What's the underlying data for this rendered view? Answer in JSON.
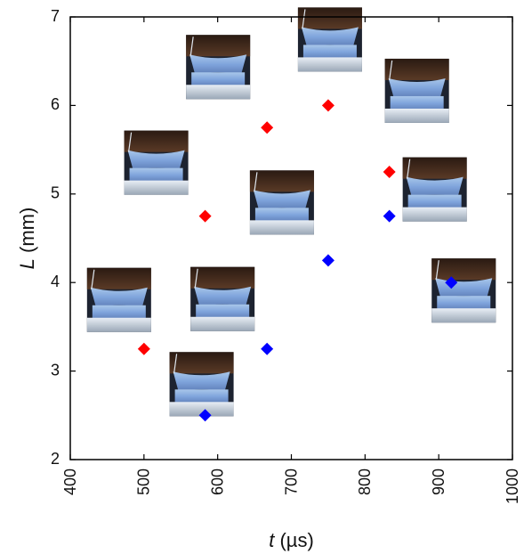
{
  "chart_data": {
    "type": "scatter",
    "title": "",
    "xlabel": {
      "symbol": "t",
      "unit": " (µs)"
    },
    "ylabel": {
      "symbol": "L",
      "unit": " (mm)"
    },
    "xlim": [
      400,
      1000
    ],
    "ylim": [
      2,
      7
    ],
    "xticks": [
      400,
      500,
      600,
      700,
      800,
      900,
      1000
    ],
    "yticks": [
      2,
      3,
      4,
      5,
      6,
      7
    ],
    "grid": false,
    "series": [
      {
        "color": "#ff0000",
        "marker": "diamond",
        "points": [
          {
            "x": 500,
            "y": 3.25
          },
          {
            "x": 583,
            "y": 4.75
          },
          {
            "x": 667,
            "y": 5.75
          },
          {
            "x": 750,
            "y": 6.0
          },
          {
            "x": 833,
            "y": 5.25
          }
        ]
      },
      {
        "color": "#0000ff",
        "marker": "diamond",
        "points": [
          {
            "x": 583,
            "y": 2.5
          },
          {
            "x": 667,
            "y": 3.25
          },
          {
            "x": 750,
            "y": 4.25
          },
          {
            "x": 833,
            "y": 4.75
          },
          {
            "x": 917,
            "y": 4.0
          }
        ]
      }
    ],
    "inset_images": [
      {
        "depicts": "droplet-photo",
        "near": {
          "x": 500,
          "y": 3.25
        }
      },
      {
        "depicts": "droplet-photo",
        "near": {
          "x": 583,
          "y": 4.75
        }
      },
      {
        "depicts": "droplet-photo",
        "near": {
          "x": 667,
          "y": 5.75
        }
      },
      {
        "depicts": "droplet-photo",
        "near": {
          "x": 750,
          "y": 6.0
        }
      },
      {
        "depicts": "droplet-photo",
        "near": {
          "x": 833,
          "y": 5.25
        }
      },
      {
        "depicts": "droplet-photo",
        "near": {
          "x": 583,
          "y": 2.5
        }
      },
      {
        "depicts": "droplet-photo",
        "near": {
          "x": 667,
          "y": 3.25
        }
      },
      {
        "depicts": "droplet-photo",
        "near": {
          "x": 750,
          "y": 4.25
        }
      },
      {
        "depicts": "droplet-photo",
        "near": {
          "x": 833,
          "y": 4.75
        }
      },
      {
        "depicts": "droplet-photo",
        "near": {
          "x": 917,
          "y": 4.0
        }
      }
    ]
  }
}
